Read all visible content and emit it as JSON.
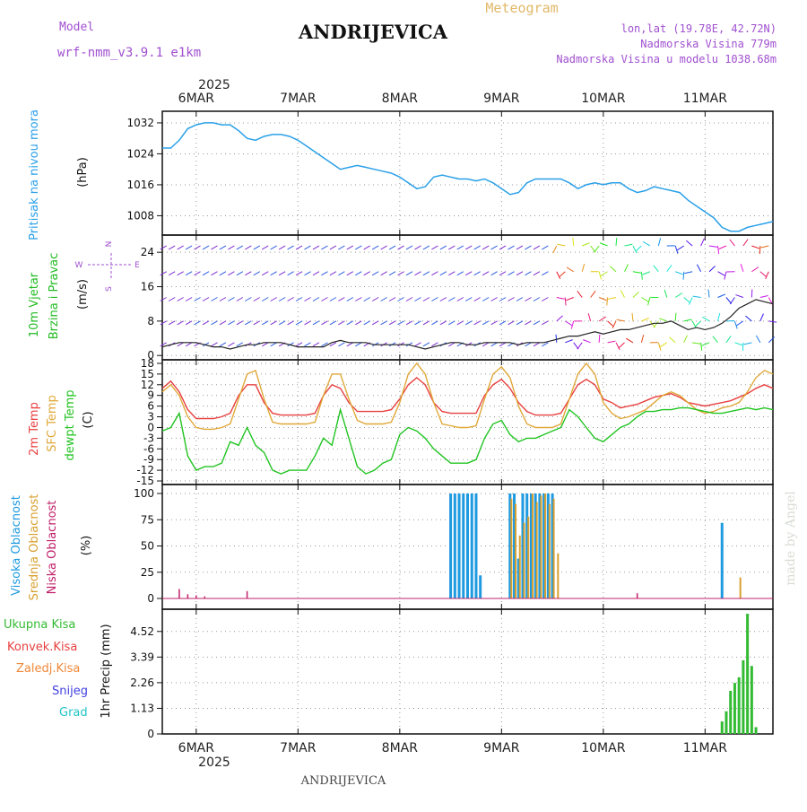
{
  "header": {
    "model_label": "Model",
    "model_name": "wrf-nmm_v3.9.1 e1km",
    "station": "ANDRIJEVICA",
    "meteogram_label": "Meteogram",
    "lonlat": "lon,lat (19.78E, 42.72N)",
    "elevation": "Nadmorska Visina 779m",
    "model_elevation": "Nadmorska Visina u modelu 1038.68m"
  },
  "footer": {
    "station": "ANDRIJEVICA",
    "credit": "made by Angel"
  },
  "colors": {
    "pressure": "#2aa0e8",
    "temp2m": "#e84040",
    "sfc": "#e0a838",
    "dewpt": "#22c422",
    "precip": "#33bb33",
    "high_cloud": "#1e9ae0",
    "mid_cloud": "#d8a030",
    "low_cloud": "#c0206a",
    "wind_label": "#22bb22",
    "model_purple": "#a050d0"
  },
  "time_axis": {
    "year": "2025",
    "days": [
      "6MAR",
      "7MAR",
      "8MAR",
      "9MAR",
      "10MAR",
      "11MAR"
    ],
    "start_hour_offset": -8,
    "end_hour_offset": 136
  },
  "panels": {
    "pressure": {
      "label": "Pritisak na nivou mora",
      "unit": "(hPa)",
      "ticks": [
        "1032",
        "1024",
        "1016",
        "1008"
      ]
    },
    "wind": {
      "label1": "10m Vjetar",
      "label2": "Brzina i Pravac",
      "unit": "(m/s)",
      "ticks": [
        "24",
        "16",
        "8",
        "0"
      ],
      "compass": [
        "N",
        "W",
        "E",
        "S"
      ]
    },
    "temp": {
      "label1": "2m Temp",
      "label2": "SFC Temp",
      "label3": "dewpt Temp",
      "unit": "(C)",
      "ticks": [
        "18",
        "15",
        "12",
        "9",
        "6",
        "3",
        "0",
        "-3",
        "-6",
        "-9",
        "-12",
        "-15"
      ]
    },
    "cloud": {
      "label1": "Visoka Oblacnost",
      "label2": "Srednja Oblacnost",
      "label3": "Niska Oblacnost",
      "unit": "(%)",
      "ticks": [
        "100",
        "75",
        "50",
        "25",
        "0"
      ]
    },
    "precip": {
      "label1": "Ukupna Kisa",
      "label2": "Konvek.Kisa",
      "label3": "Zaledj.Kisa",
      "label4": "Snijeg",
      "label5": "Grad",
      "unit": "1hr Precip (mm)",
      "ticks": [
        "4.52",
        "3.39",
        "2.26",
        "1.13",
        "0"
      ]
    }
  },
  "chart_data": [
    {
      "type": "line",
      "ylabel": "(hPa)",
      "ylim": [
        1003,
        1035
      ],
      "x": [
        -8,
        -6,
        -4,
        -2,
        0,
        2,
        4,
        6,
        8,
        10,
        12,
        14,
        16,
        18,
        20,
        22,
        24,
        26,
        28,
        30,
        32,
        34,
        36,
        38,
        40,
        42,
        44,
        46,
        48,
        50,
        52,
        54,
        56,
        58,
        60,
        62,
        64,
        66,
        68,
        70,
        72,
        74,
        76,
        78,
        80,
        82,
        84,
        86,
        88,
        90,
        92,
        94,
        96,
        98,
        100,
        102,
        104,
        106,
        108,
        110,
        112,
        114,
        116,
        118,
        120,
        122,
        124,
        126,
        128,
        130,
        132,
        134,
        136
      ],
      "series": [
        {
          "name": "",
          "values": [
            1025.5,
            1025.5,
            1027.5,
            1030.5,
            1031.5,
            1032,
            1032,
            1031.5,
            1031.5,
            1030,
            1028,
            1027.5,
            1028.5,
            1029,
            1029,
            1028.5,
            1027.5,
            1026,
            1024.5,
            1023,
            1021.5,
            1020,
            1020.5,
            1021,
            1020.5,
            1020,
            1019.5,
            1019,
            1018,
            1016.5,
            1015,
            1015.5,
            1018,
            1018.5,
            1018,
            1017.5,
            1017.5,
            1017,
            1017.5,
            1016.5,
            1015,
            1013.5,
            1014,
            1016.5,
            1017.5,
            1017.5,
            1017.5,
            1017.5,
            1016.5,
            1015,
            1016,
            1016.5,
            1016,
            1016.5,
            1016.5,
            1015,
            1014,
            1014.5,
            1015.5,
            1015,
            1014.5,
            1014,
            1012,
            1010.5,
            1009,
            1007.5,
            1005,
            1004,
            1004,
            1005,
            1005.5,
            1006,
            1006.5
          ]
        }
      ]
    },
    {
      "type": "line",
      "ylabel": "(m/s)",
      "ylim": [
        -1,
        28
      ],
      "x": [
        -8,
        -6,
        -4,
        -2,
        0,
        2,
        4,
        6,
        8,
        10,
        12,
        14,
        16,
        18,
        20,
        22,
        24,
        26,
        28,
        30,
        32,
        34,
        36,
        38,
        40,
        42,
        44,
        46,
        48,
        50,
        52,
        54,
        56,
        58,
        60,
        62,
        64,
        66,
        68,
        70,
        72,
        74,
        76,
        78,
        80,
        82,
        84,
        86,
        88,
        90,
        92,
        94,
        96,
        98,
        100,
        102,
        104,
        106,
        108,
        110,
        112,
        114,
        116,
        118,
        120,
        122,
        124,
        126,
        128,
        130,
        132,
        134,
        136
      ],
      "series": [
        {
          "name": "",
          "values": [
            2,
            2.5,
            3,
            3,
            3,
            2.5,
            2,
            2,
            1.5,
            2,
            2.5,
            2.5,
            3,
            3,
            3,
            2.5,
            2,
            2,
            2,
            2,
            3,
            3.5,
            3,
            3,
            3,
            2.5,
            2.5,
            2.5,
            2.5,
            2.5,
            2,
            1.5,
            2,
            2.5,
            3,
            3,
            2.5,
            2.5,
            3,
            3,
            3,
            3,
            2.5,
            3,
            3,
            3,
            3.5,
            4,
            4.5,
            4.5,
            5,
            5.5,
            5,
            5.5,
            6,
            6,
            6.5,
            7,
            7.5,
            7.5,
            8,
            7,
            6,
            6.5,
            6,
            6.5,
            7.5,
            9,
            11,
            12,
            13,
            12.5,
            12
          ]
        }
      ]
    },
    {
      "type": "line",
      "ylabel": "(C)",
      "ylim": [
        -16,
        19
      ],
      "x": [
        -8,
        -6,
        -4,
        -2,
        0,
        2,
        4,
        6,
        8,
        10,
        12,
        14,
        16,
        18,
        20,
        22,
        24,
        26,
        28,
        30,
        32,
        34,
        36,
        38,
        40,
        42,
        44,
        46,
        48,
        50,
        52,
        54,
        56,
        58,
        60,
        62,
        64,
        66,
        68,
        70,
        72,
        74,
        76,
        78,
        80,
        82,
        84,
        86,
        88,
        90,
        92,
        94,
        96,
        98,
        100,
        102,
        104,
        106,
        108,
        110,
        112,
        114,
        116,
        118,
        120,
        122,
        124,
        126,
        128,
        130,
        132,
        134,
        136
      ],
      "series": [
        {
          "name": "2m Temp",
          "values": [
            11,
            13,
            10,
            5,
            2.5,
            2.5,
            2.5,
            3,
            4,
            9,
            12,
            12,
            7,
            4,
            3.5,
            3.5,
            3.5,
            3.5,
            4,
            9,
            12,
            11,
            7,
            4.5,
            4.5,
            4.5,
            4.5,
            5,
            8,
            12,
            14,
            12,
            7,
            4.5,
            4,
            4,
            4,
            4,
            9,
            12,
            13.5,
            11,
            7,
            4.5,
            3.5,
            3.5,
            3.5,
            4,
            8,
            12,
            13.5,
            12,
            8,
            7,
            5.5,
            6,
            6.5,
            7.5,
            8.5,
            9,
            9.5,
            8.5,
            7,
            6.5,
            6,
            6.5,
            7,
            7.5,
            8.5,
            9.5,
            11,
            12,
            11
          ]
        },
        {
          "name": "SFC Temp",
          "values": [
            10,
            12,
            9,
            3,
            0,
            -0.5,
            -0.5,
            0,
            1,
            8,
            15,
            16,
            8,
            1.5,
            1,
            1,
            1,
            1,
            1.5,
            9,
            15,
            15,
            8,
            2,
            1,
            1,
            1,
            1.5,
            7,
            15,
            18,
            15,
            7,
            1,
            0.5,
            0,
            0,
            0.5,
            8,
            15,
            17,
            14,
            6,
            1,
            0,
            0,
            0,
            1,
            8,
            15,
            18,
            15,
            7,
            4,
            2.5,
            3,
            4,
            5,
            7,
            9,
            10,
            9,
            7,
            5,
            4,
            4.5,
            5.5,
            6,
            7,
            10,
            14,
            16,
            15
          ]
        },
        {
          "name": "dewpt Temp",
          "values": [
            -1,
            0,
            4,
            -8,
            -12,
            -11,
            -11,
            -10,
            -4,
            -5,
            0,
            -5,
            -7,
            -12,
            -13,
            -12,
            -12,
            -12,
            -8,
            -3,
            -5,
            5,
            -3,
            -11,
            -13,
            -12,
            -10,
            -9,
            -2,
            0,
            -1,
            -3,
            -6,
            -8,
            -10,
            -10,
            -10,
            -9,
            -3,
            1,
            2,
            -2,
            -4,
            -3,
            -3,
            -2,
            -1,
            0,
            5,
            3,
            0,
            -3,
            -4,
            -2,
            0,
            1,
            3,
            4.5,
            4.5,
            5,
            5,
            5.5,
            5.5,
            5,
            4.5,
            4,
            4,
            4.5,
            5,
            5.5,
            5,
            5.5,
            5
          ]
        }
      ]
    },
    {
      "type": "bar",
      "ylabel": "(%)",
      "ylim": [
        0,
        100
      ],
      "series": [
        {
          "name": "Visoka Oblacnost",
          "x": [
            60,
            61,
            62,
            63,
            64,
            65,
            66,
            67,
            74,
            75,
            76,
            77,
            78,
            79,
            80,
            81,
            82,
            83,
            84,
            124
          ],
          "values": [
            100,
            100,
            100,
            100,
            100,
            100,
            100,
            22,
            100,
            100,
            38,
            100,
            100,
            100,
            100,
            100,
            100,
            100,
            100,
            72
          ]
        },
        {
          "name": "Srednja Oblacnost",
          "x": [
            74,
            75,
            76,
            77,
            78,
            79,
            80,
            81,
            82,
            83,
            84,
            85,
            128
          ],
          "values": [
            95,
            90,
            60,
            72,
            78,
            100,
            92,
            98,
            100,
            90,
            95,
            43,
            20
          ]
        },
        {
          "name": "Niska Oblacnost",
          "x": [
            -4,
            -2,
            0,
            2,
            12,
            104
          ],
          "values": [
            9,
            4,
            3,
            2,
            7,
            5
          ]
        }
      ]
    },
    {
      "type": "bar",
      "ylabel": "1hr Precip (mm)",
      "ylim": [
        0,
        5.5
      ],
      "series": [
        {
          "name": "Ukupna Kisa",
          "x": [
            124,
            125,
            126,
            127,
            128,
            129,
            130,
            131,
            132
          ],
          "values": [
            0.55,
            1.0,
            1.9,
            2.25,
            2.5,
            3.25,
            5.3,
            3.0,
            0.3
          ]
        }
      ]
    }
  ]
}
